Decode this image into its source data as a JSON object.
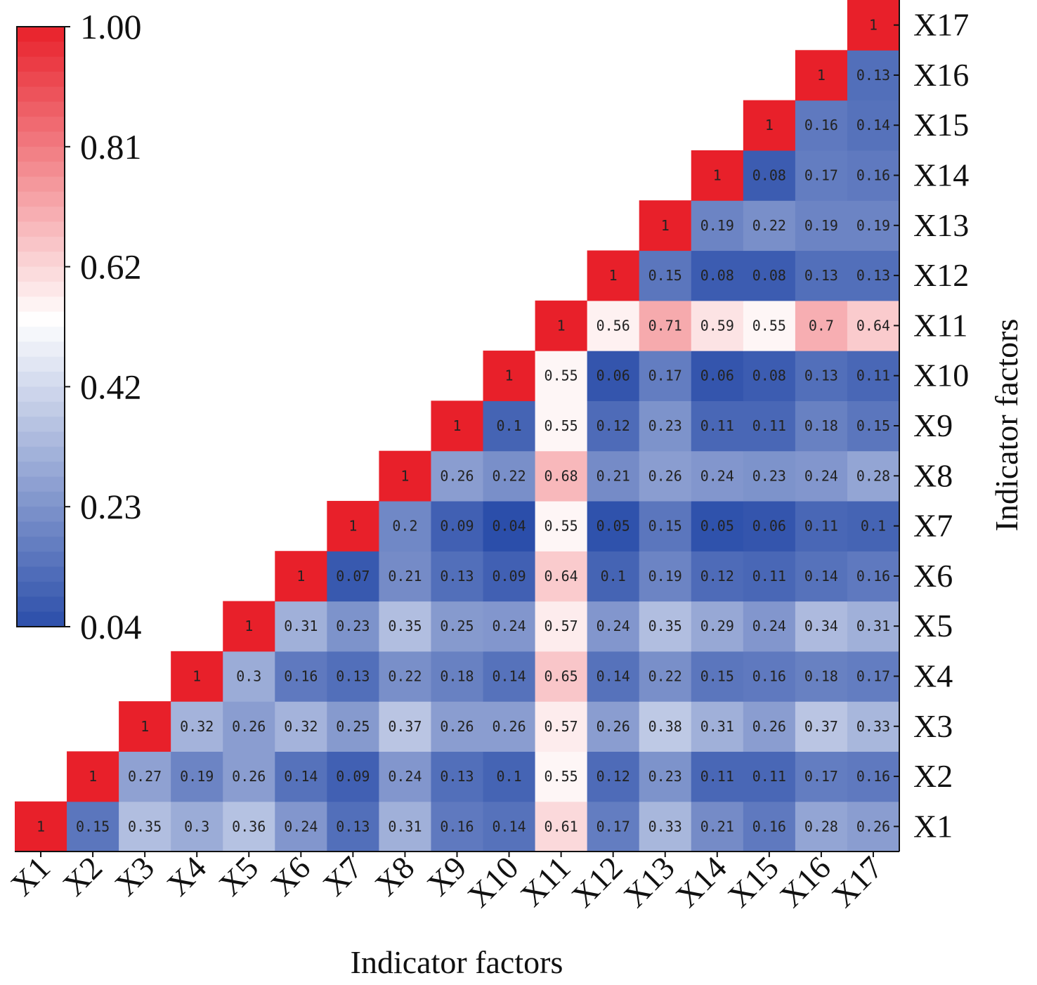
{
  "chart_data": {
    "type": "heatmap",
    "xlabel": "Indicator factors",
    "ylabel": "Indicator factors",
    "categories": [
      "X1",
      "X2",
      "X3",
      "X4",
      "X5",
      "X6",
      "X7",
      "X8",
      "X9",
      "X10",
      "X11",
      "X12",
      "X13",
      "X14",
      "X15",
      "X16",
      "X17"
    ],
    "matrix": [
      [
        "1",
        "0.15",
        "0.35",
        "0.3",
        "0.36",
        "0.24",
        "0.13",
        "0.31",
        "0.16",
        "0.14",
        "0.61",
        "0.17",
        "0.33",
        "0.21",
        "0.16",
        "0.28",
        "0.26"
      ],
      [
        null,
        "1",
        "0.27",
        "0.19",
        "0.26",
        "0.14",
        "0.09",
        "0.24",
        "0.13",
        "0.1",
        "0.55",
        "0.12",
        "0.23",
        "0.11",
        "0.11",
        "0.17",
        "0.16"
      ],
      [
        null,
        null,
        "1",
        "0.32",
        "0.26",
        "0.32",
        "0.25",
        "0.37",
        "0.26",
        "0.26",
        "0.57",
        "0.26",
        "0.38",
        "0.31",
        "0.26",
        "0.37",
        "0.33"
      ],
      [
        null,
        null,
        null,
        "1",
        "0.3",
        "0.16",
        "0.13",
        "0.22",
        "0.18",
        "0.14",
        "0.65",
        "0.14",
        "0.22",
        "0.15",
        "0.16",
        "0.18",
        "0.17"
      ],
      [
        null,
        null,
        null,
        null,
        "1",
        "0.31",
        "0.23",
        "0.35",
        "0.25",
        "0.24",
        "0.57",
        "0.24",
        "0.35",
        "0.29",
        "0.24",
        "0.34",
        "0.31"
      ],
      [
        null,
        null,
        null,
        null,
        null,
        "1",
        "0.07",
        "0.21",
        "0.13",
        "0.09",
        "0.64",
        "0.1",
        "0.19",
        "0.12",
        "0.11",
        "0.14",
        "0.16"
      ],
      [
        null,
        null,
        null,
        null,
        null,
        null,
        "1",
        "0.2",
        "0.09",
        "0.04",
        "0.55",
        "0.05",
        "0.15",
        "0.05",
        "0.06",
        "0.11",
        "0.1"
      ],
      [
        null,
        null,
        null,
        null,
        null,
        null,
        null,
        "1",
        "0.26",
        "0.22",
        "0.68",
        "0.21",
        "0.26",
        "0.24",
        "0.23",
        "0.24",
        "0.28"
      ],
      [
        null,
        null,
        null,
        null,
        null,
        null,
        null,
        null,
        "1",
        "0.1",
        "0.55",
        "0.12",
        "0.23",
        "0.11",
        "0.11",
        "0.18",
        "0.15"
      ],
      [
        null,
        null,
        null,
        null,
        null,
        null,
        null,
        null,
        null,
        "1",
        "0.55",
        "0.06",
        "0.17",
        "0.06",
        "0.08",
        "0.13",
        "0.11"
      ],
      [
        null,
        null,
        null,
        null,
        null,
        null,
        null,
        null,
        null,
        null,
        "1",
        "0.56",
        "0.71",
        "0.59",
        "0.55",
        "0.7",
        "0.64"
      ],
      [
        null,
        null,
        null,
        null,
        null,
        null,
        null,
        null,
        null,
        null,
        null,
        "1",
        "0.15",
        "0.08",
        "0.08",
        "0.13",
        "0.13"
      ],
      [
        null,
        null,
        null,
        null,
        null,
        null,
        null,
        null,
        null,
        null,
        null,
        null,
        "1",
        "0.19",
        "0.22",
        "0.19",
        "0.19"
      ],
      [
        null,
        null,
        null,
        null,
        null,
        null,
        null,
        null,
        null,
        null,
        null,
        null,
        null,
        "1",
        "0.08",
        "0.17",
        "0.16"
      ],
      [
        null,
        null,
        null,
        null,
        null,
        null,
        null,
        null,
        null,
        null,
        null,
        null,
        null,
        null,
        "1",
        "0.16",
        "0.14"
      ],
      [
        null,
        null,
        null,
        null,
        null,
        null,
        null,
        null,
        null,
        null,
        null,
        null,
        null,
        null,
        null,
        "1",
        "0.13"
      ],
      [
        null,
        null,
        null,
        null,
        null,
        null,
        null,
        null,
        null,
        null,
        null,
        null,
        null,
        null,
        null,
        null,
        "1"
      ]
    ],
    "colorbar": {
      "ticks": [
        "1.00",
        "0.81",
        "0.62",
        "0.42",
        "0.23",
        "0.04"
      ],
      "range": [
        0.04,
        1.0
      ],
      "colors": {
        "low": "#2b4eaa",
        "mid": "#ffffff",
        "high": "#e8202a"
      }
    },
    "legend_position": "top-left"
  }
}
